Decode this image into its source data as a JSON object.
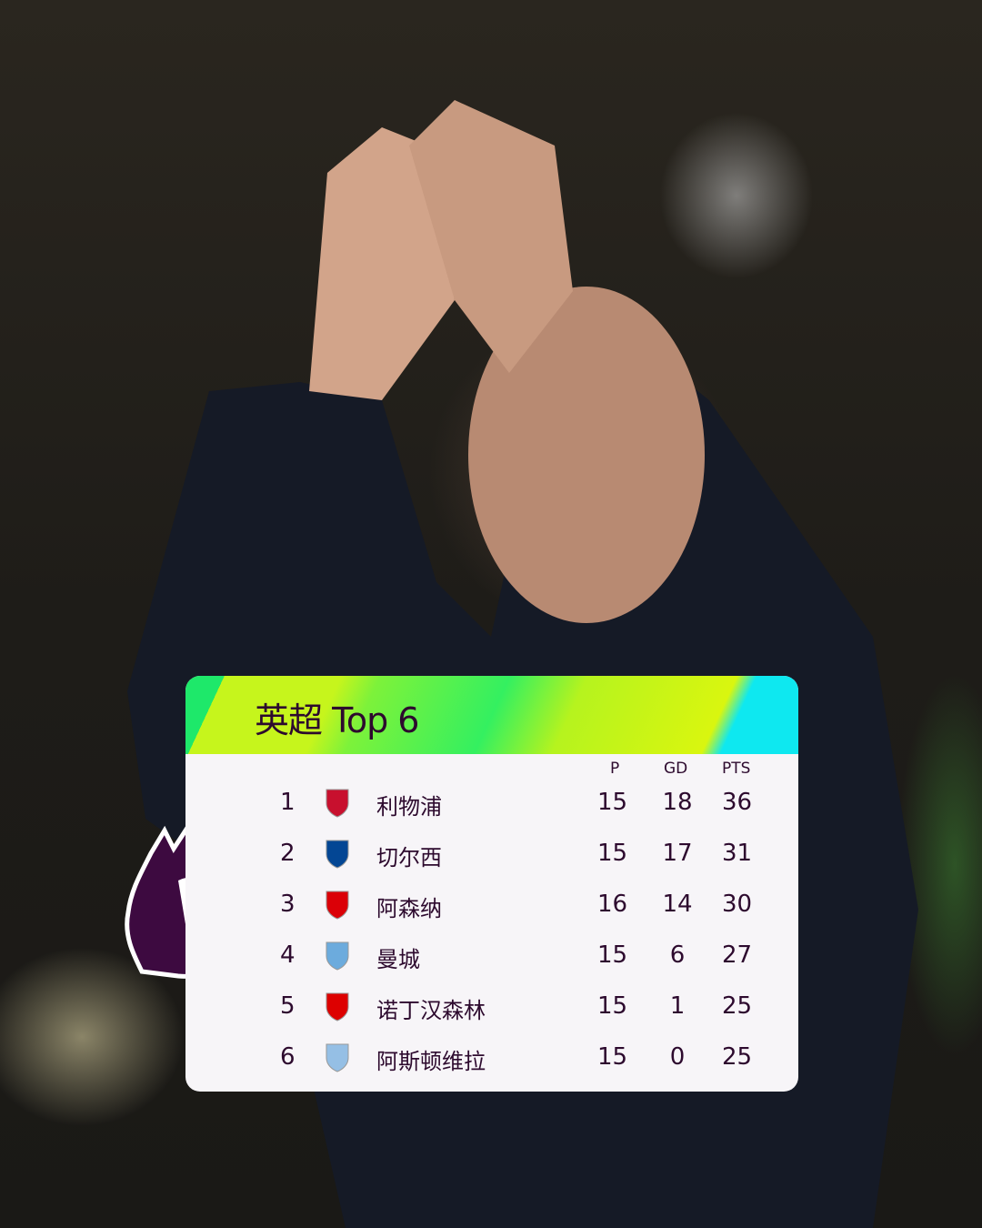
{
  "title": "英超 Top 6",
  "columns": {
    "p": "P",
    "gd": "GD",
    "pts": "PTS"
  },
  "teams": [
    {
      "pos": "1",
      "name": "利物浦",
      "p": "15",
      "gd": "18",
      "pts": "36",
      "crest": "liverpool-crest-icon",
      "color": "#c8102e"
    },
    {
      "pos": "2",
      "name": "切尔西",
      "p": "15",
      "gd": "17",
      "pts": "31",
      "crest": "chelsea-crest-icon",
      "color": "#034694"
    },
    {
      "pos": "3",
      "name": "阿森纳",
      "p": "16",
      "gd": "14",
      "pts": "30",
      "crest": "arsenal-crest-icon",
      "color": "#db0007"
    },
    {
      "pos": "4",
      "name": "曼城",
      "p": "15",
      "gd": "6",
      "pts": "27",
      "crest": "man-city-crest-icon",
      "color": "#6cabdd"
    },
    {
      "pos": "5",
      "name": "诺丁汉森林",
      "p": "15",
      "gd": "1",
      "pts": "25",
      "crest": "nottingham-forest-crest-icon",
      "color": "#dd0000"
    },
    {
      "pos": "6",
      "name": "阿斯顿维拉",
      "p": "15",
      "gd": "0",
      "pts": "25",
      "crest": "aston-villa-crest-icon",
      "color": "#95bfe5"
    }
  ],
  "colors": {
    "text": "#2d0a2e",
    "header_green": "#c6f51c",
    "header_cyan": "#0ee8f0",
    "pl_purple": "#3d0a40"
  }
}
